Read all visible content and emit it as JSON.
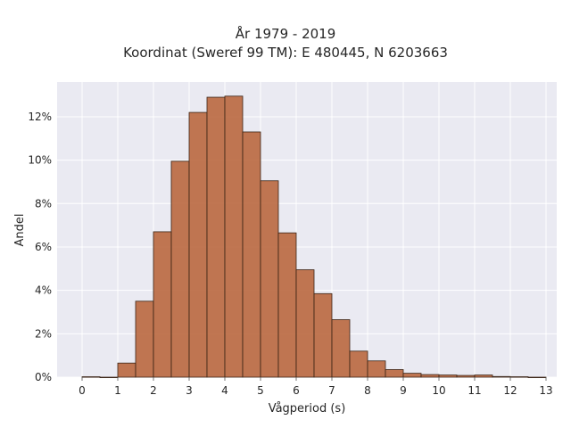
{
  "chart_data": {
    "type": "bar",
    "title": "År 1979 - 2019",
    "subtitle": "Koordinat (Sweref 99 TM): E 480445, N 6203663",
    "xlabel": "Vågperiod (s)",
    "ylabel": "Andel",
    "xlim": [
      -0.7,
      13.3
    ],
    "ylim": [
      0,
      13.6
    ],
    "x_ticks": [
      0,
      1,
      2,
      3,
      4,
      5,
      6,
      7,
      8,
      9,
      10,
      11,
      12,
      13
    ],
    "x_tick_labels": [
      "0",
      "1",
      "2",
      "3",
      "4",
      "5",
      "6",
      "7",
      "8",
      "9",
      "10",
      "11",
      "12",
      "13"
    ],
    "y_ticks": [
      0,
      2,
      4,
      6,
      8,
      10,
      12
    ],
    "y_tick_labels": [
      "0%",
      "2%",
      "4%",
      "6%",
      "8%",
      "10%",
      "12%"
    ],
    "bin_width": 0.5,
    "bin_starts": [
      0,
      0.5,
      1,
      1.5,
      2,
      2.5,
      3,
      3.5,
      4,
      4.5,
      5,
      5.5,
      6,
      6.5,
      7,
      7.5,
      8,
      8.5,
      9,
      9.5,
      10,
      10.5,
      11,
      11.5,
      12,
      12.5
    ],
    "values": [
      0.02,
      0.0,
      0.65,
      3.5,
      6.7,
      9.95,
      12.2,
      12.9,
      12.95,
      11.3,
      9.05,
      6.65,
      4.95,
      3.85,
      2.65,
      1.2,
      0.75,
      0.35,
      0.18,
      0.12,
      0.1,
      0.08,
      0.1,
      0.03,
      0.02,
      0.0
    ],
    "grid": true,
    "colors": {
      "bar_fill": "#b8643a",
      "bar_stroke": "#3a2416",
      "plot_bg": "#eaeaf2",
      "grid": "#ffffff"
    }
  }
}
